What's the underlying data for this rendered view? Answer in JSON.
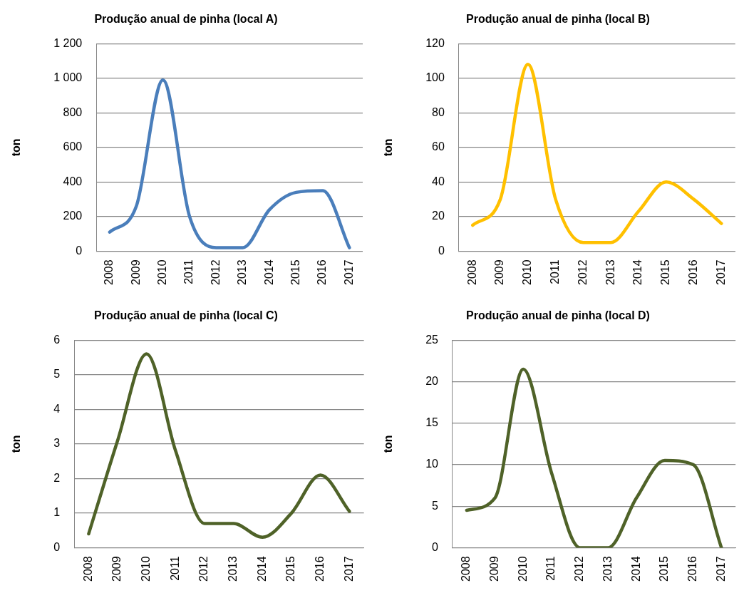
{
  "chart_data": [
    {
      "type": "line",
      "title": "Produção anual de pinha (local A)",
      "ylabel": "ton",
      "categories": [
        "2008",
        "2009",
        "2010",
        "2011",
        "2012",
        "2013",
        "2014",
        "2015",
        "2016",
        "2017"
      ],
      "series": [
        {
          "color": "#4a7ebb",
          "values": [
            110,
            260,
            990,
            200,
            20,
            20,
            240,
            340,
            350,
            20
          ]
        }
      ],
      "ylim": [
        0,
        1200
      ],
      "yticks": [
        0,
        200,
        400,
        600,
        800,
        {
          "value": 1000,
          "label": "1 000"
        },
        {
          "value": 1200,
          "label": "1 200"
        }
      ],
      "grid": "y",
      "legend": false,
      "marker": "none"
    },
    {
      "type": "line",
      "title": "Produção anual de pinha (local B)",
      "ylabel": "ton",
      "categories": [
        "2008",
        "2009",
        "2010",
        "2011",
        "2012",
        "2013",
        "2014",
        "2015",
        "2016",
        "2017"
      ],
      "series": [
        {
          "color": "#ffc000",
          "values": [
            15,
            30,
            108,
            30,
            5,
            5,
            23,
            40,
            30,
            16
          ]
        }
      ],
      "ylim": [
        0,
        120
      ],
      "yticks": [
        0,
        20,
        40,
        60,
        80,
        100,
        120
      ],
      "grid": "y",
      "legend": false,
      "marker": "none"
    },
    {
      "type": "line",
      "title": "Produção anual de pinha (local C)",
      "ylabel": "ton",
      "categories": [
        "2008",
        "2009",
        "2010",
        "2011",
        "2012",
        "2013",
        "2014",
        "2015",
        "2016",
        "2017"
      ],
      "series": [
        {
          "color": "#4f6228",
          "values": [
            0.4,
            3.1,
            5.6,
            2.8,
            0.7,
            0.7,
            0.3,
            1,
            2.1,
            1.05
          ]
        }
      ],
      "ylim": [
        0,
        6
      ],
      "yticks": [
        0,
        1,
        2,
        3,
        4,
        5,
        6
      ],
      "grid": "y",
      "legend": false,
      "marker": "none"
    },
    {
      "type": "line",
      "title": "Produção anual de pinha (local D)",
      "ylabel": "ton",
      "categories": [
        "2008",
        "2009",
        "2010",
        "2011",
        "2012",
        "2013",
        "2014",
        "2015",
        "2016",
        "2017"
      ],
      "series": [
        {
          "color": "#4f6228",
          "values": [
            4.5,
            6,
            21.5,
            9,
            0,
            0,
            6,
            10.5,
            10,
            0
          ]
        }
      ],
      "ylim": [
        0,
        25
      ],
      "yticks": [
        0,
        5,
        10,
        15,
        20,
        25
      ],
      "grid": "y",
      "legend": false,
      "marker": "none"
    }
  ]
}
